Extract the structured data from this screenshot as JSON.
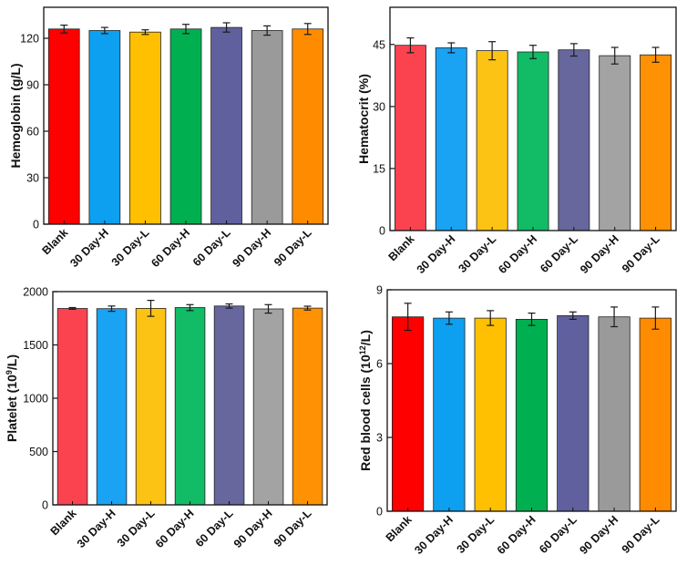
{
  "chart_data": [
    {
      "type": "bar",
      "title": "",
      "xlabel": "",
      "ylabel": {
        "prefix": "Hemoglobin (g/L)",
        "sup": "",
        "suffix": ""
      },
      "ylim": [
        0,
        140
      ],
      "yticks": [
        "0",
        "30",
        "60",
        "90",
        "120"
      ],
      "categories": [
        "Blank",
        "30 Day-H",
        "30 Day-L",
        "60 Day-H",
        "60 Day-L",
        "90 Day-H",
        "90 Day-L"
      ],
      "values": [
        126,
        125,
        124,
        126,
        127,
        125,
        126
      ],
      "errors": [
        2.5,
        2.0,
        1.5,
        3.0,
        3.0,
        3.0,
        3.5
      ]
    },
    {
      "type": "bar",
      "title": "",
      "xlabel": "",
      "ylabel": {
        "prefix": "Hematocrit (%)",
        "sup": "",
        "suffix": ""
      },
      "ylim": [
        0,
        54
      ],
      "yticks": [
        "0",
        "15",
        "30",
        "45"
      ],
      "categories": [
        "Blank",
        "30 Day-H",
        "30 Day-L",
        "60 Day-H",
        "60 Day-L",
        "90 Day-H",
        "90 Day-L"
      ],
      "values": [
        44.8,
        44.2,
        43.5,
        43.2,
        43.7,
        42.3,
        42.5
      ],
      "errors": [
        1.8,
        1.2,
        2.2,
        1.6,
        1.5,
        2.0,
        1.8
      ]
    },
    {
      "type": "bar",
      "title": "",
      "xlabel": "",
      "ylabel": {
        "prefix": "Platelet (10",
        "sup": "9",
        "suffix": "/L)"
      },
      "ylim": [
        0,
        2000
      ],
      "yticks": [
        "0",
        "500",
        "1000",
        "1500",
        "2000"
      ],
      "categories": [
        "Blank",
        "30 Day-H",
        "30 Day-L",
        "60 Day-H",
        "60 Day-L",
        "90 Day-H",
        "90 Day-L"
      ],
      "values": [
        1842,
        1840,
        1843,
        1850,
        1865,
        1838,
        1845
      ],
      "errors": [
        8,
        25,
        75,
        28,
        20,
        40,
        18
      ]
    },
    {
      "type": "bar",
      "title": "",
      "xlabel": "",
      "ylabel": {
        "prefix": "Red blood cells (10",
        "sup": "12",
        "suffix": "/L)"
      },
      "ylim": [
        0,
        9
      ],
      "yticks": [
        "0",
        "3",
        "6",
        "9"
      ],
      "categories": [
        "Blank",
        "30 Day-H",
        "30 Day-L",
        "60 Day-H",
        "60 Day-L",
        "90 Day-H",
        "90 Day-L"
      ],
      "values": [
        7.9,
        7.85,
        7.85,
        7.8,
        7.95,
        7.9,
        7.85
      ],
      "errors": [
        0.55,
        0.25,
        0.3,
        0.25,
        0.15,
        0.4,
        0.45
      ]
    }
  ],
  "colors": {
    "set_saturated": [
      "#ff0000",
      "#0ea0f0",
      "#fec000",
      "#00b050",
      "#60609f",
      "#9a9a9a",
      "#ff8c00"
    ],
    "set_soft": [
      "#fb4350",
      "#1aa2f3",
      "#fdc314",
      "#12bb66",
      "#67679e",
      "#a3a3a3",
      "#fe9104"
    ],
    "axis": "#111111"
  }
}
